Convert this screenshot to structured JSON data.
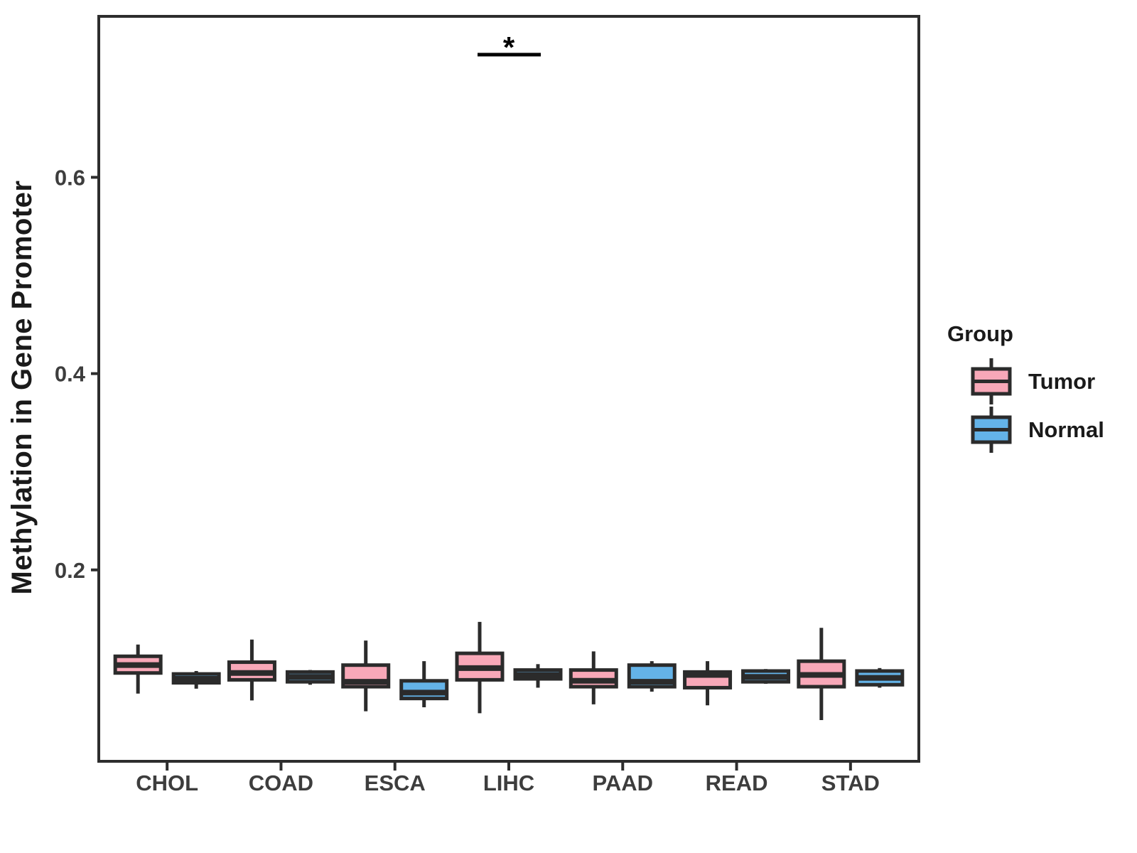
{
  "chart_data": {
    "type": "grouped_boxplot",
    "title": "",
    "xlabel": "",
    "ylabel": "Methylation in Gene Promoter",
    "ylim": [
      0.005,
      0.764
    ],
    "yticks": [
      "0.2",
      "0.4",
      "0.6"
    ],
    "ytick_values": [
      0.2,
      0.4,
      0.6
    ],
    "categories": [
      "CHOL",
      "COAD",
      "ESCA",
      "LIHC",
      "PAAD",
      "READ",
      "STAD"
    ],
    "legend_title": "Group",
    "legend_position": "right",
    "grid": false,
    "series": [
      {
        "name": "Tumor",
        "color": "#F8A8B8",
        "boxes": [
          {
            "category": "CHOL",
            "whislo": 0.074,
            "q1": 0.095,
            "median": 0.103,
            "q3": 0.112,
            "whishi": 0.124
          },
          {
            "category": "COAD",
            "whislo": 0.067,
            "q1": 0.088,
            "median": 0.095,
            "q3": 0.106,
            "whishi": 0.129
          },
          {
            "category": "ESCA",
            "whislo": 0.056,
            "q1": 0.081,
            "median": 0.086,
            "q3": 0.103,
            "whishi": 0.128
          },
          {
            "category": "LIHC",
            "whislo": 0.054,
            "q1": 0.088,
            "median": 0.1,
            "q3": 0.115,
            "whishi": 0.147
          },
          {
            "category": "PAAD",
            "whislo": 0.063,
            "q1": 0.081,
            "median": 0.087,
            "q3": 0.098,
            "whishi": 0.117
          },
          {
            "category": "READ",
            "whislo": 0.062,
            "q1": 0.08,
            "median": 0.093,
            "q3": 0.096,
            "whishi": 0.107
          },
          {
            "category": "STAD",
            "whislo": 0.047,
            "q1": 0.081,
            "median": 0.093,
            "q3": 0.107,
            "whishi": 0.141
          }
        ]
      },
      {
        "name": "Normal",
        "color": "#64B3E8",
        "boxes": [
          {
            "category": "CHOL",
            "whislo": 0.079,
            "q1": 0.085,
            "median": 0.089,
            "q3": 0.094,
            "whishi": 0.097
          },
          {
            "category": "COAD",
            "whislo": 0.083,
            "q1": 0.086,
            "median": 0.091,
            "q3": 0.096,
            "whishi": 0.098
          },
          {
            "category": "ESCA",
            "whislo": 0.06,
            "q1": 0.069,
            "median": 0.075,
            "q3": 0.087,
            "whishi": 0.107
          },
          {
            "category": "LIHC",
            "whislo": 0.08,
            "q1": 0.089,
            "median": 0.093,
            "q3": 0.098,
            "whishi": 0.104
          },
          {
            "category": "PAAD",
            "whislo": 0.076,
            "q1": 0.081,
            "median": 0.086,
            "q3": 0.103,
            "whishi": 0.107
          },
          {
            "category": "READ",
            "whislo": 0.084,
            "q1": 0.086,
            "median": 0.091,
            "q3": 0.097,
            "whishi": 0.099
          },
          {
            "category": "STAD",
            "whislo": 0.08,
            "q1": 0.083,
            "median": 0.09,
            "q3": 0.097,
            "whishi": 0.1
          }
        ]
      }
    ],
    "significance": [
      {
        "category": "LIHC",
        "label": "*",
        "bar_y_value": 0.725
      }
    ]
  },
  "colors": {
    "tumor_fill": "#F8A8B8",
    "normal_fill": "#64B3E8",
    "box_outline": "#2B2B2B",
    "axis_line": "#2D2D2D",
    "tick_text": "#3D3D3D",
    "label_text": "#1A1A1A",
    "background": "#FFFFFF"
  }
}
